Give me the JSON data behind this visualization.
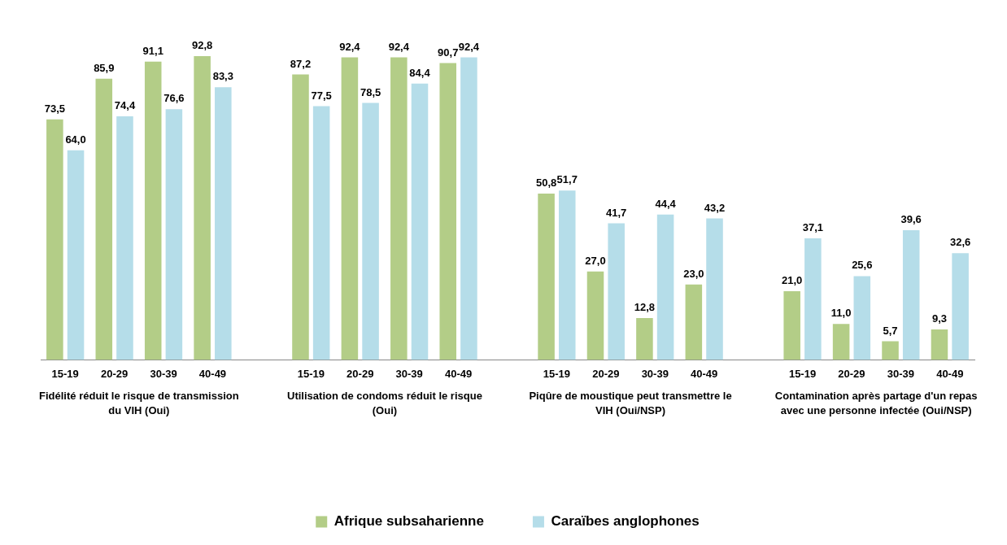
{
  "chart_data": {
    "type": "bar",
    "categories": [
      "15-19",
      "20-29",
      "30-39",
      "40-49",
      null,
      "15-19",
      "20-29",
      "30-39",
      "40-49",
      null,
      "15-19",
      "20-29",
      "30-39",
      "40-49",
      null,
      "15-19",
      "20-29",
      "30-39",
      "40-49"
    ],
    "series": [
      {
        "name": "Afrique subsaharienne",
        "color": "#b3cd87",
        "values": [
          73.5,
          85.9,
          91.1,
          92.8,
          null,
          87.2,
          92.4,
          92.4,
          90.7,
          null,
          50.8,
          27.0,
          12.8,
          23.0,
          null,
          21.0,
          11.0,
          5.7,
          9.3
        ],
        "value_labels": [
          "73,5",
          "85,9",
          "91,1",
          "92,8",
          null,
          "87,2",
          "92,4",
          "92,4",
          "90,7",
          null,
          "50,8",
          "27,0",
          "12,8",
          "23,0",
          null,
          "21,0",
          "11,0",
          "5,7",
          "9,3"
        ]
      },
      {
        "name": "Caraïbes anglophones",
        "color": "#b5dde9",
        "values": [
          64.0,
          74.4,
          76.6,
          83.3,
          null,
          77.5,
          78.5,
          84.4,
          92.4,
          null,
          51.7,
          41.7,
          44.4,
          43.2,
          null,
          37.1,
          25.6,
          39.6,
          32.6
        ],
        "value_labels": [
          "64,0",
          "74,4",
          "76,6",
          "83,3",
          null,
          "77,5",
          "78,5",
          "84,4",
          "92,4",
          null,
          "51,7",
          "41,7",
          "44,4",
          "43,2",
          null,
          "37,1",
          "25,6",
          "39,6",
          "32,6"
        ]
      }
    ],
    "annotations": [
      "Fidélité réduit le risque de transmission du VIH (Oui)",
      "Utilisation de condoms réduit le risque (Oui)",
      "Piqûre de moustique peut transmettre le VIH (Oui/NSP)",
      "Contamination après partage d'un repas avec une personne infectée (Oui/NSP)"
    ],
    "legend": "bottom",
    "grid": false
  }
}
